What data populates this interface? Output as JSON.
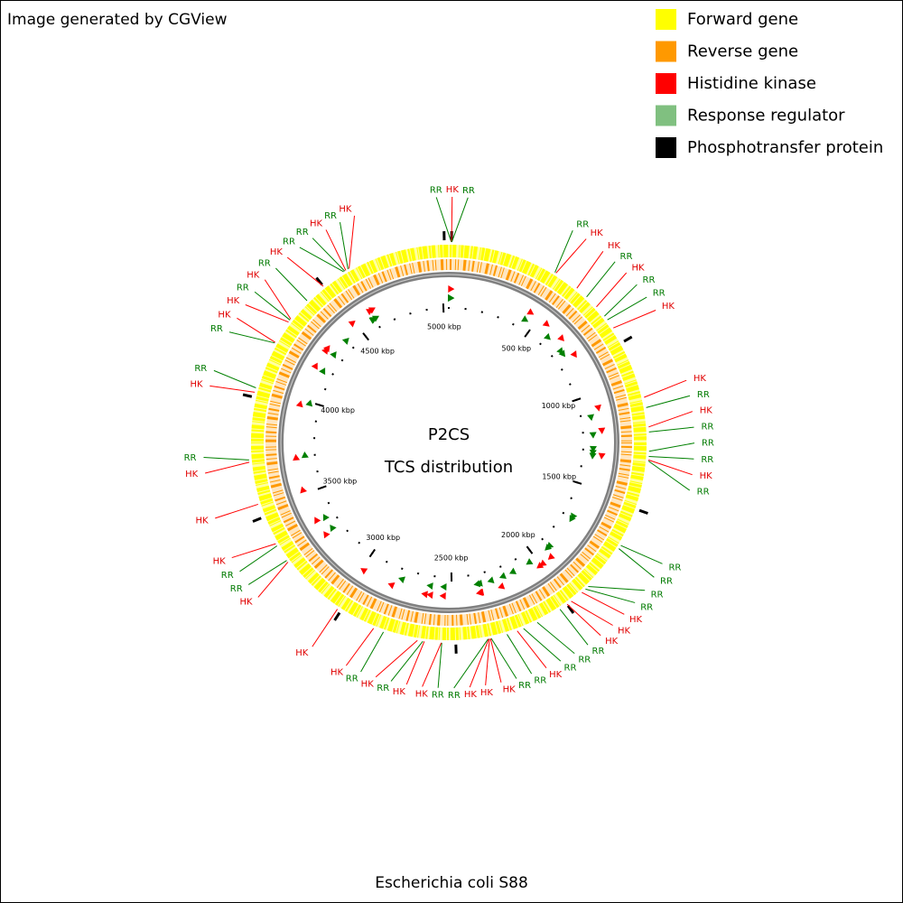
{
  "header": "Image generated by CGView",
  "legend": [
    {
      "label": "Forward gene",
      "color": "#ffff00"
    },
    {
      "label": "Reverse gene",
      "color": "#ff9900"
    },
    {
      "label": "Histidine kinase",
      "color": "#ff0000"
    },
    {
      "label": "Response regulator",
      "color": "#80c080"
    },
    {
      "label": "Phosphotransfer protein",
      "color": "#000000"
    }
  ],
  "chart_data": {
    "type": "circular-genome",
    "title": "P2CS",
    "subtitle": "TCS distribution",
    "xlim": [
      0,
      5032
    ],
    "xticks": [
      {
        "value": 500,
        "label": "500 kbp"
      },
      {
        "value": 1000,
        "label": "1000 kbp"
      },
      {
        "value": 1500,
        "label": "1500 kbp"
      },
      {
        "value": 2000,
        "label": "2000 kbp"
      },
      {
        "value": 2500,
        "label": "2500 kbp"
      },
      {
        "value": 3000,
        "label": "3000 kbp"
      },
      {
        "value": 3500,
        "label": "3500 kbp"
      },
      {
        "value": 4000,
        "label": "4000 kbp"
      },
      {
        "value": 4500,
        "label": "4500 kbp"
      },
      {
        "value": 5000,
        "label": "5000 kbp"
      }
    ],
    "features": [
      {
        "label": "RR",
        "x": 10
      },
      {
        "label": "HK",
        "x": 11
      },
      {
        "label": "RR",
        "x": 12
      },
      {
        "label": "RR",
        "x": 447
      },
      {
        "label": "HK",
        "x": 452
      },
      {
        "label": "HK",
        "x": 555
      },
      {
        "label": "RR",
        "x": 607
      },
      {
        "label": "HK",
        "x": 663
      },
      {
        "label": "RR",
        "x": 712
      },
      {
        "label": "RR",
        "x": 731
      },
      {
        "label": "HK",
        "x": 771
      },
      {
        "label": "HK",
        "x": 1076
      },
      {
        "label": "RR",
        "x": 1118
      },
      {
        "label": "HK",
        "x": 1196
      },
      {
        "label": "RR",
        "x": 1216
      },
      {
        "label": "RR",
        "x": 1293
      },
      {
        "label": "RR",
        "x": 1314
      },
      {
        "label": "HK",
        "x": 1328
      },
      {
        "label": "RR",
        "x": 1332
      },
      {
        "label": "RR",
        "x": 1690
      },
      {
        "label": "RR",
        "x": 1705
      },
      {
        "label": "RR",
        "x": 1900
      },
      {
        "label": "RR",
        "x": 1915
      },
      {
        "label": "HK",
        "x": 1935
      },
      {
        "label": "HK",
        "x": 1990
      },
      {
        "label": "HK",
        "x": 2010
      },
      {
        "label": "RR",
        "x": 2045
      },
      {
        "label": "RR",
        "x": 2150
      },
      {
        "label": "RR",
        "x": 2210
      },
      {
        "label": "HK",
        "x": 2237
      },
      {
        "label": "RR",
        "x": 2280
      },
      {
        "label": "RR",
        "x": 2345
      },
      {
        "label": "HK",
        "x": 2348
      },
      {
        "label": "HK",
        "x": 2352
      },
      {
        "label": "HK",
        "x": 2355
      },
      {
        "label": "RR",
        "x": 2358
      },
      {
        "label": "RR",
        "x": 2544
      },
      {
        "label": "HK",
        "x": 2546
      },
      {
        "label": "HK",
        "x": 2614
      },
      {
        "label": "RR",
        "x": 2620
      },
      {
        "label": "HK",
        "x": 2642
      },
      {
        "label": "RR",
        "x": 2782
      },
      {
        "label": "HK",
        "x": 2824
      },
      {
        "label": "HK",
        "x": 2988
      },
      {
        "label": "HK",
        "x": 3262
      },
      {
        "label": "RR",
        "x": 3270
      },
      {
        "label": "RR",
        "x": 3340
      },
      {
        "label": "HK",
        "x": 3350
      },
      {
        "label": "HK",
        "x": 3523
      },
      {
        "label": "HK",
        "x": 3695
      },
      {
        "label": "RR",
        "x": 3704
      },
      {
        "label": "HK",
        "x": 3977
      },
      {
        "label": "RR",
        "x": 3995
      },
      {
        "label": "RR",
        "x": 4190
      },
      {
        "label": "HK",
        "x": 4193
      },
      {
        "label": "HK",
        "x": 4290
      },
      {
        "label": "RR",
        "x": 4300
      },
      {
        "label": "HK",
        "x": 4305
      },
      {
        "label": "RR",
        "x": 4403
      },
      {
        "label": "HK",
        "x": 4490
      },
      {
        "label": "RR",
        "x": 4590
      },
      {
        "label": "RR",
        "x": 4595
      },
      {
        "label": "HK",
        "x": 4600
      },
      {
        "label": "RR",
        "x": 4610
      },
      {
        "label": "HK",
        "x": 4615
      }
    ],
    "hpt_x": [
      5014,
      11,
      4490,
      3957,
      3467,
      2973,
      2488,
      2011,
      1532,
      839
    ]
  },
  "footer": "Escherichia coli S88"
}
